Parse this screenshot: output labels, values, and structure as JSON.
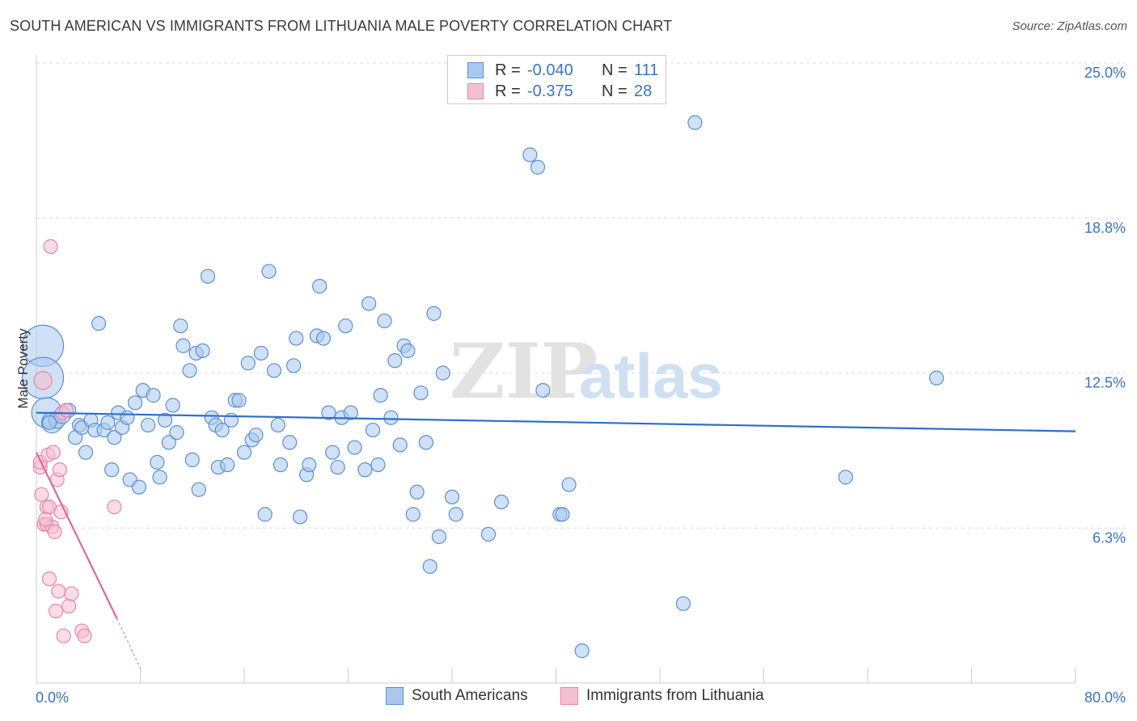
{
  "header": {
    "title": "SOUTH AMERICAN VS IMMIGRANTS FROM LITHUANIA MALE POVERTY CORRELATION CHART",
    "source": "Source: ZipAtlas.com"
  },
  "watermark": {
    "zip": "ZIP",
    "atlas": "atlas"
  },
  "legend": {
    "rows": [
      {
        "r_label": "R =",
        "r_value": "-0.040",
        "n_label": "N =",
        "n_value": "111"
      },
      {
        "r_label": "R =",
        "r_value": "-0.375",
        "n_label": "N =",
        "n_value": "28"
      }
    ]
  },
  "colors": {
    "blue_fill": "#aac8ef",
    "blue_stroke": "#5b8fd6",
    "blue_line": "#2e6fcc",
    "pink_fill": "#f6bfd1",
    "pink_stroke": "#e887a8",
    "pink_line": "#e2698f",
    "axis_label": "#3a73c8",
    "grid": "#dddddd"
  },
  "chart_data": {
    "type": "scatter",
    "title": "SOUTH AMERICAN VS IMMIGRANTS FROM LITHUANIA MALE POVERTY CORRELATION CHART",
    "xlabel": "",
    "ylabel": "Male Poverty",
    "xlim": [
      0,
      80
    ],
    "ylim": [
      0,
      25.0
    ],
    "y_ticks": [
      {
        "value": 6.25,
        "label": "6.3%"
      },
      {
        "value": 12.5,
        "label": "12.5%"
      },
      {
        "value": 18.75,
        "label": "18.8%"
      },
      {
        "value": 25.0,
        "label": "25.0%"
      }
    ],
    "x_tick_labels": {
      "min": "0.0%",
      "max": "80.0%"
    },
    "series": [
      {
        "name": "South Americans",
        "color": "#aac8ef",
        "stroke": "#5b8fd6",
        "trend": {
          "x": [
            0,
            80
          ],
          "y": [
            10.9,
            10.15
          ]
        },
        "points": [
          [
            0.5,
            13.6,
            3
          ],
          [
            0.5,
            12.3,
            3
          ],
          [
            0.8,
            10.9,
            2.2
          ],
          [
            1.2,
            10.5,
            1.5
          ],
          [
            1.6,
            10.6,
            1.2
          ],
          [
            2.0,
            10.8,
            1.2
          ],
          [
            2.5,
            11.0,
            1
          ],
          [
            3.0,
            9.9,
            1
          ],
          [
            3.3,
            10.4,
            1
          ],
          [
            3.5,
            10.3,
            1
          ],
          [
            3.8,
            9.3,
            1
          ],
          [
            4.2,
            10.6,
            1
          ],
          [
            4.5,
            10.2,
            1
          ],
          [
            4.8,
            14.5,
            1
          ],
          [
            5.2,
            10.2,
            1
          ],
          [
            5.5,
            10.5,
            1
          ],
          [
            5.8,
            8.6,
            1
          ],
          [
            6.0,
            9.9,
            1
          ],
          [
            6.3,
            10.9,
            1
          ],
          [
            6.6,
            10.3,
            1
          ],
          [
            7.0,
            10.7,
            1
          ],
          [
            7.2,
            8.2,
            1
          ],
          [
            7.6,
            11.3,
            1
          ],
          [
            7.9,
            7.9,
            1
          ],
          [
            8.2,
            11.8,
            1
          ],
          [
            8.6,
            10.4,
            1
          ],
          [
            9.0,
            11.6,
            1
          ],
          [
            9.3,
            8.9,
            1
          ],
          [
            9.5,
            8.3,
            1
          ],
          [
            9.9,
            10.6,
            1
          ],
          [
            10.2,
            9.7,
            1
          ],
          [
            10.5,
            11.2,
            1
          ],
          [
            10.8,
            10.1,
            1
          ],
          [
            11.1,
            14.4,
            1
          ],
          [
            11.3,
            13.6,
            1
          ],
          [
            11.8,
            12.6,
            1
          ],
          [
            12.0,
            9.0,
            1
          ],
          [
            12.3,
            13.3,
            1
          ],
          [
            12.5,
            7.8,
            1
          ],
          [
            12.8,
            13.4,
            1
          ],
          [
            13.2,
            16.4,
            1
          ],
          [
            13.5,
            10.7,
            1
          ],
          [
            13.8,
            10.4,
            1
          ],
          [
            14.0,
            8.7,
            1
          ],
          [
            14.3,
            10.2,
            1
          ],
          [
            14.7,
            8.8,
            1
          ],
          [
            15.0,
            10.6,
            1
          ],
          [
            15.3,
            11.4,
            1
          ],
          [
            15.6,
            11.4,
            1
          ],
          [
            16.0,
            9.3,
            1
          ],
          [
            16.3,
            12.9,
            1
          ],
          [
            16.6,
            9.8,
            1
          ],
          [
            16.9,
            10.0,
            1
          ],
          [
            17.3,
            13.3,
            1
          ],
          [
            17.6,
            6.8,
            1
          ],
          [
            17.9,
            16.6,
            1
          ],
          [
            18.3,
            12.6,
            1
          ],
          [
            18.6,
            10.4,
            1
          ],
          [
            18.8,
            8.8,
            1
          ],
          [
            19.5,
            9.7,
            1
          ],
          [
            19.8,
            12.8,
            1
          ],
          [
            20.0,
            13.9,
            1
          ],
          [
            20.3,
            6.7,
            1
          ],
          [
            20.8,
            8.4,
            1
          ],
          [
            21.0,
            8.8,
            1
          ],
          [
            21.6,
            14.0,
            1
          ],
          [
            21.8,
            16.0,
            1
          ],
          [
            22.1,
            13.9,
            1
          ],
          [
            22.5,
            10.9,
            1
          ],
          [
            22.8,
            9.3,
            1
          ],
          [
            23.2,
            8.7,
            1
          ],
          [
            23.5,
            10.7,
            1
          ],
          [
            23.8,
            14.4,
            1
          ],
          [
            24.2,
            10.9,
            1
          ],
          [
            24.5,
            9.5,
            1
          ],
          [
            25.3,
            8.6,
            1
          ],
          [
            25.6,
            15.3,
            1
          ],
          [
            25.9,
            10.2,
            1
          ],
          [
            26.3,
            8.8,
            1
          ],
          [
            26.5,
            11.6,
            1
          ],
          [
            26.8,
            14.6,
            1
          ],
          [
            27.3,
            10.7,
            1
          ],
          [
            27.6,
            13.0,
            1
          ],
          [
            28.0,
            9.6,
            1
          ],
          [
            28.3,
            13.6,
            1
          ],
          [
            28.6,
            13.4,
            1
          ],
          [
            29.0,
            6.8,
            1
          ],
          [
            29.3,
            7.7,
            1
          ],
          [
            29.6,
            11.7,
            1
          ],
          [
            30.0,
            9.7,
            1
          ],
          [
            30.3,
            4.7,
            1
          ],
          [
            30.6,
            14.9,
            1
          ],
          [
            31.0,
            5.9,
            1
          ],
          [
            31.3,
            12.5,
            1
          ],
          [
            32.0,
            7.5,
            1
          ],
          [
            32.3,
            6.8,
            1
          ],
          [
            34.8,
            6.0,
            1
          ],
          [
            35.8,
            7.3,
            1
          ],
          [
            38.0,
            21.3,
            1
          ],
          [
            38.6,
            20.8,
            1
          ],
          [
            39.0,
            11.8,
            1
          ],
          [
            40.3,
            6.8,
            1
          ],
          [
            40.5,
            6.8,
            1
          ],
          [
            41.0,
            8.0,
            1
          ],
          [
            42.0,
            1.3,
            1
          ],
          [
            49.8,
            3.2,
            1
          ],
          [
            50.7,
            22.6,
            1
          ],
          [
            62.3,
            8.3,
            1
          ],
          [
            69.3,
            12.3,
            1
          ],
          [
            1.0,
            10.5,
            1
          ]
        ]
      },
      {
        "name": "Immigrants from Lithuania",
        "color": "#f6bfd1",
        "stroke": "#e887a8",
        "trend": {
          "x": [
            0,
            6.2
          ],
          "y": [
            9.3,
            2.6
          ],
          "dash_x": [
            6.2,
            8.0
          ],
          "dash_y": [
            2.6,
            0.6
          ]
        },
        "points": [
          [
            0.3,
            8.7,
            1
          ],
          [
            0.3,
            8.9,
            1
          ],
          [
            0.4,
            7.6,
            1
          ],
          [
            0.5,
            12.2,
            1.3
          ],
          [
            0.6,
            6.4,
            1
          ],
          [
            0.8,
            6.4,
            1
          ],
          [
            0.8,
            7.1,
            1
          ],
          [
            0.9,
            9.2,
            1
          ],
          [
            1.0,
            7.1,
            1
          ],
          [
            1.0,
            4.2,
            1
          ],
          [
            1.1,
            17.6,
            1
          ],
          [
            1.2,
            6.3,
            1
          ],
          [
            1.3,
            9.3,
            1
          ],
          [
            1.4,
            6.1,
            1
          ],
          [
            1.5,
            2.9,
            1
          ],
          [
            1.6,
            8.2,
            1
          ],
          [
            1.7,
            3.7,
            1
          ],
          [
            1.8,
            8.6,
            1
          ],
          [
            1.9,
            6.9,
            1
          ],
          [
            2.0,
            10.9,
            1
          ],
          [
            2.1,
            1.9,
            1
          ],
          [
            2.3,
            11.0,
            1
          ],
          [
            2.5,
            3.1,
            1
          ],
          [
            2.7,
            3.6,
            1
          ],
          [
            3.5,
            2.1,
            1
          ],
          [
            3.7,
            1.9,
            1
          ],
          [
            6.0,
            7.1,
            1
          ],
          [
            0.7,
            6.6,
            1
          ]
        ]
      }
    ]
  }
}
